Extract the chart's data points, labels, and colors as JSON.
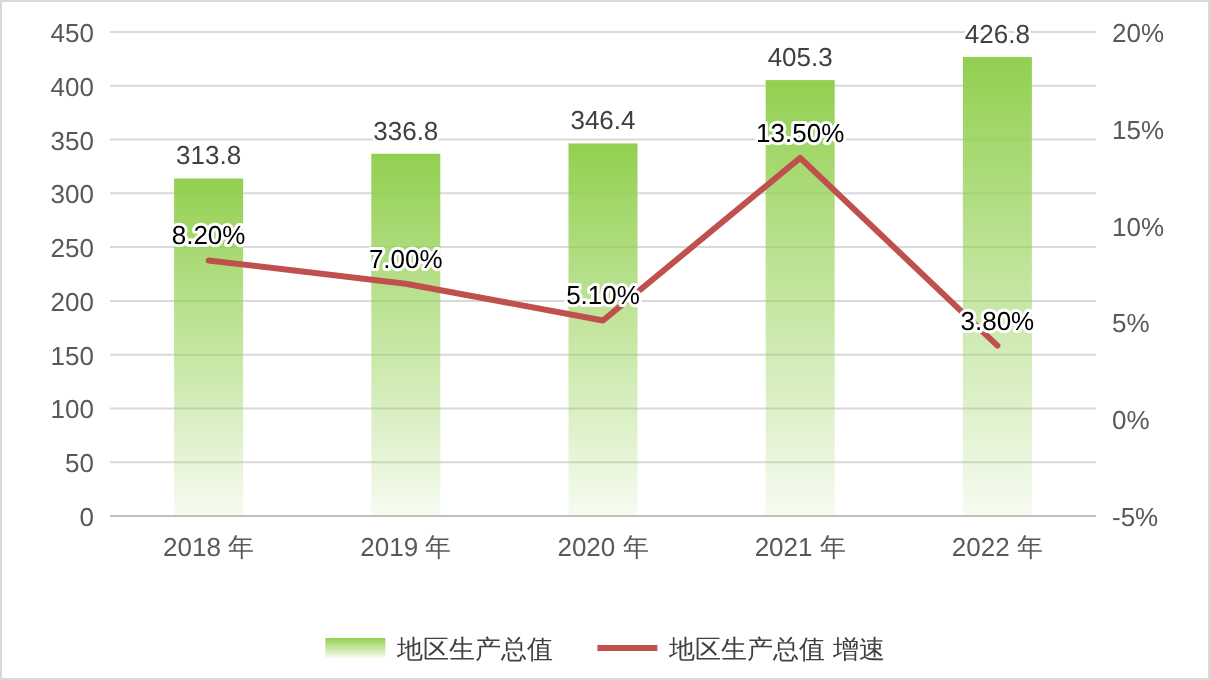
{
  "chart_data": {
    "type": "bar",
    "categories": [
      "2018 年",
      "2019 年",
      "2020 年",
      "2021 年",
      "2022 年"
    ],
    "series": [
      {
        "name": "地区生产总值",
        "color": "#92d050",
        "values": [
          313.8,
          336.8,
          346.4,
          405.3,
          426.8
        ],
        "value_labels": [
          "313.8",
          "336.8",
          "346.4",
          "405.3",
          "426.8"
        ]
      },
      {
        "name": "地区生产总值 增速",
        "type": "line",
        "axis": "y2",
        "color": "#c0504d",
        "values": [
          8.2,
          7.0,
          5.1,
          13.5,
          3.8
        ],
        "value_labels": [
          "8.20%",
          "7.00%",
          "5.10%",
          "13.50%",
          "3.80%"
        ]
      }
    ],
    "ylim": [
      0,
      450
    ],
    "yticks": [
      0,
      50,
      100,
      150,
      200,
      250,
      300,
      350,
      400,
      450
    ],
    "y2lim": [
      -5,
      20
    ],
    "y2ticks": [
      {
        "value": -5,
        "label": "-5%"
      },
      {
        "value": 0,
        "label": "0%"
      },
      {
        "value": 5,
        "label": "5%"
      },
      {
        "value": 10,
        "label": "10%"
      },
      {
        "value": 15,
        "label": "15%"
      },
      {
        "value": 20,
        "label": "20%"
      }
    ],
    "grid": "y",
    "legend": "bottom",
    "marker": "none",
    "line_style": "solid"
  }
}
